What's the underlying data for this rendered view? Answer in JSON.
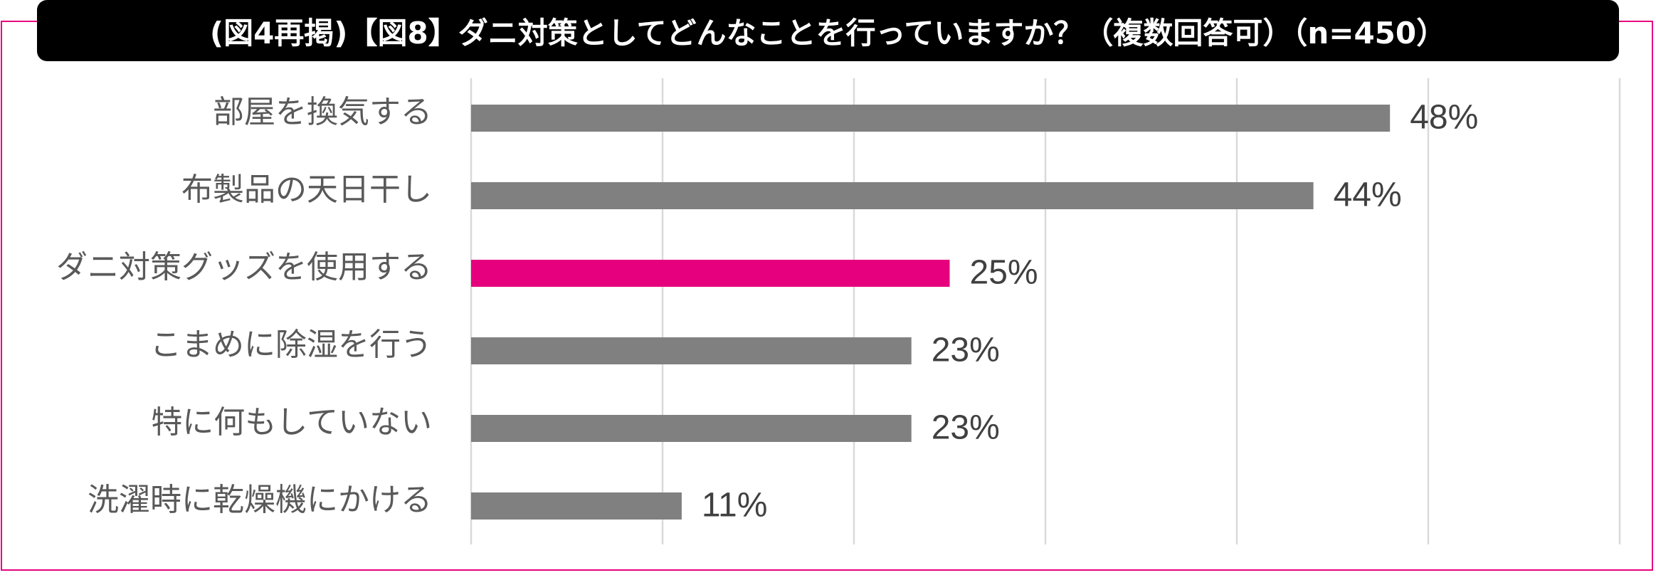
{
  "chart_data": {
    "type": "bar",
    "orientation": "horizontal",
    "title": "(図4再掲)【図8】ダニ対策としてどんなことを行っていますか？（複数回答可）（n=450）",
    "categories": [
      "部屋を換気する",
      "布製品の天日干し",
      "ダニ対策グッズを使用する",
      "こまめに除湿を行う",
      "特に何もしていない",
      "洗濯時に乾燥機にかける"
    ],
    "values": [
      48,
      44,
      25,
      23,
      23,
      11
    ],
    "value_labels": [
      "48%",
      "44%",
      "25%",
      "23%",
      "23%",
      "11%"
    ],
    "unit": "%",
    "xlim": [
      0,
      60
    ],
    "grid_step": 10,
    "grid": true,
    "legend": "none",
    "bar_color": "#808080",
    "highlight_index": 2,
    "highlight_color": "#E6007E",
    "frame_color": "#E6007E"
  }
}
